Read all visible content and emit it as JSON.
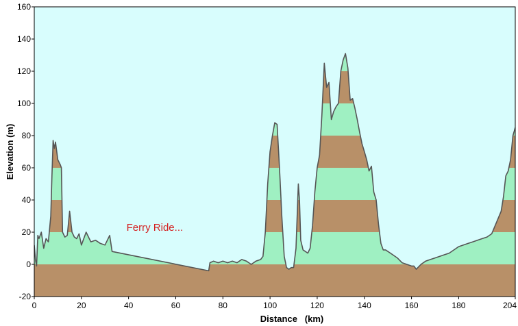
{
  "chart_data": {
    "type": "area",
    "title": "",
    "xlabel": "Distance   (km)",
    "ylabel": "Elevation (m)",
    "xlim": [
      0,
      204
    ],
    "ylim": [
      -20,
      160
    ],
    "xticks": [
      0,
      20,
      40,
      60,
      80,
      100,
      120,
      140,
      160,
      180,
      204
    ],
    "yticks": [
      -20,
      0,
      20,
      40,
      60,
      80,
      100,
      120,
      140,
      160
    ],
    "grid": false,
    "legend": "none",
    "band_interval_m": 20,
    "colors": {
      "background": "#d8fdfd",
      "band_light": "#9ff0c2",
      "band_dark": "#b89068",
      "profile_line": "#555555",
      "frame": "#000000",
      "annotation": "#d42020"
    },
    "annotations": [
      {
        "text": "Ferry Ride...",
        "x": 40,
        "y": 11
      }
    ],
    "series": [
      {
        "x": [
          0,
          0.5,
          1,
          1.5,
          2,
          3,
          4,
          5,
          6,
          7,
          7.5,
          8,
          8.5,
          9,
          10,
          11,
          11.5,
          12,
          13,
          14,
          15,
          16,
          17,
          18,
          19,
          20,
          22,
          24,
          26,
          28,
          30,
          32,
          33,
          74,
          74.5,
          76,
          78,
          80,
          82,
          84,
          86,
          88,
          90,
          92,
          94,
          96,
          97,
          98,
          99,
          100,
          101,
          102,
          103,
          104,
          105,
          106,
          107,
          108,
          109,
          110,
          111,
          112,
          112.5,
          113,
          114,
          115,
          116,
          117,
          118,
          119,
          120,
          121,
          122,
          123,
          124,
          125,
          126,
          127,
          128,
          129,
          130,
          131,
          132,
          133,
          134,
          135,
          136,
          137,
          138,
          139,
          140,
          141,
          142,
          143,
          144,
          145,
          146,
          147,
          148,
          149,
          150,
          152,
          154,
          156,
          158,
          160,
          161,
          162,
          164,
          166,
          168,
          170,
          172,
          174,
          176,
          178,
          180,
          182,
          184,
          186,
          188,
          190,
          192,
          194,
          196,
          198,
          199,
          200,
          201,
          202,
          203,
          204
        ],
        "y": [
          12,
          3,
          -1,
          18,
          16,
          20,
          10,
          16,
          14,
          30,
          55,
          77,
          72,
          76,
          65,
          62,
          60,
          20,
          17,
          18,
          33,
          20,
          17,
          16,
          19,
          12,
          20,
          14,
          15,
          13,
          12,
          18,
          8,
          -4,
          1,
          2,
          1,
          2,
          1,
          2,
          1,
          3,
          2,
          0,
          2,
          3,
          5,
          20,
          50,
          70,
          80,
          88,
          87,
          60,
          30,
          5,
          -2,
          -3,
          -2,
          -2,
          10,
          50,
          40,
          15,
          9,
          8,
          7,
          10,
          24,
          45,
          60,
          68,
          93,
          125,
          110,
          113,
          90,
          95,
          98,
          100,
          120,
          127,
          131,
          122,
          102,
          103,
          97,
          90,
          82,
          75,
          70,
          65,
          58,
          61,
          45,
          40,
          25,
          13,
          9,
          9,
          8,
          6,
          4,
          1,
          0,
          -1,
          -1,
          -3,
          0,
          2,
          3,
          4,
          5,
          6,
          7,
          9,
          11,
          12,
          13,
          14,
          15,
          16,
          17,
          19,
          26,
          33,
          42,
          55,
          58,
          65,
          80,
          85
        ]
      }
    ]
  }
}
